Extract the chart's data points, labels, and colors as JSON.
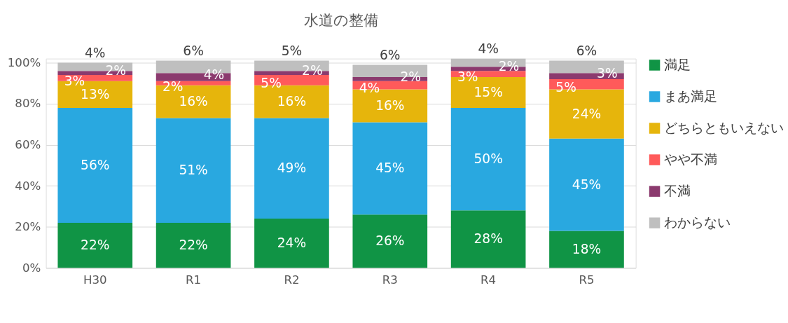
{
  "chart_data": {
    "type": "bar",
    "title": "水道の整備",
    "stacked": true,
    "categories": [
      "H30",
      "R1",
      "R2",
      "R3",
      "R4",
      "R5"
    ],
    "series": [
      {
        "name": "満足",
        "color": "#109445",
        "values": [
          22,
          22,
          24,
          26,
          28,
          18
        ],
        "value_labels": [
          "22%",
          "22%",
          "24%",
          "26%",
          "28%",
          "18%"
        ]
      },
      {
        "name": "まあ満足",
        "color": "#29a8e0",
        "values": [
          56,
          51,
          49,
          45,
          50,
          45
        ],
        "value_labels": [
          "56%",
          "51%",
          "49%",
          "45%",
          "50%",
          "45%"
        ]
      },
      {
        "name": "どちらともいえない",
        "color": "#e6b50c",
        "values": [
          13,
          16,
          16,
          16,
          15,
          24
        ],
        "value_labels": [
          "13%",
          "16%",
          "16%",
          "16%",
          "15%",
          "24%"
        ]
      },
      {
        "name": "やや不満",
        "color": "#ff5a5a",
        "values": [
          3,
          2,
          5,
          4,
          3,
          5
        ],
        "value_labels": [
          "3%",
          "2%",
          "5%",
          "4%",
          "3%",
          "5%"
        ]
      },
      {
        "name": "不満",
        "color": "#8b3a6e",
        "values": [
          2,
          4,
          2,
          2,
          2,
          3
        ],
        "value_labels": [
          "2%",
          "4%",
          "2%",
          "2%",
          "2%",
          "3%"
        ]
      },
      {
        "name": "わからない",
        "color": "#bfbfbf",
        "values": [
          4,
          6,
          5,
          6,
          4,
          6
        ],
        "value_labels": [
          "4%",
          "6%",
          "5%",
          "6%",
          "4%",
          "6%"
        ]
      }
    ],
    "ylim": [
      0,
      102
    ],
    "yticks": [
      {
        "value": 0,
        "label": "0%"
      },
      {
        "value": 20,
        "label": "20%"
      },
      {
        "value": 40,
        "label": "40%"
      },
      {
        "value": 60,
        "label": "60%"
      },
      {
        "value": 80,
        "label": "80%"
      },
      {
        "value": 100,
        "label": "100%"
      }
    ],
    "grid": "y",
    "legend": "right"
  }
}
